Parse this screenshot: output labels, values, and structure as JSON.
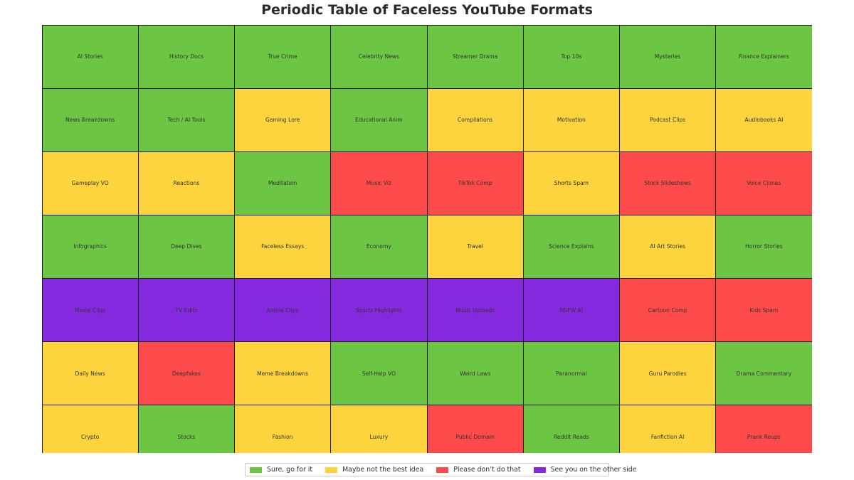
{
  "chart_data": {
    "type": "table",
    "title": "Periodic Table of Faceless YouTube Formats",
    "columns": 8,
    "categories": {
      "green": {
        "label": "Sure, go for it",
        "color": "#6cc644"
      },
      "yellow": {
        "label": "Maybe not the best idea",
        "color": "#fdd43d"
      },
      "red": {
        "label": "Please don’t do that",
        "color": "#fd4a4a"
      },
      "purple": {
        "label": "See you on the other side",
        "color": "#8429de"
      }
    },
    "legend_order": [
      "green",
      "yellow",
      "red",
      "purple"
    ],
    "legend_placement": "bottom-center",
    "cells": [
      {
        "label": "AI Stories",
        "category": "green"
      },
      {
        "label": "History Docs",
        "category": "green"
      },
      {
        "label": "True Crime",
        "category": "green"
      },
      {
        "label": "Celebrity News",
        "category": "green"
      },
      {
        "label": "Streamer Drama",
        "category": "green"
      },
      {
        "label": "Top 10s",
        "category": "green"
      },
      {
        "label": "Mysteries",
        "category": "green"
      },
      {
        "label": "Finance Explainers",
        "category": "green"
      },
      {
        "label": "News Breakdowns",
        "category": "green"
      },
      {
        "label": "Tech / AI Tools",
        "category": "green"
      },
      {
        "label": "Gaming Lore",
        "category": "yellow"
      },
      {
        "label": "Educational Anim",
        "category": "green"
      },
      {
        "label": "Compilations",
        "category": "yellow"
      },
      {
        "label": "Motivation",
        "category": "yellow"
      },
      {
        "label": "Podcast Clips",
        "category": "yellow"
      },
      {
        "label": "Audiobooks AI",
        "category": "yellow"
      },
      {
        "label": "Gameplay VO",
        "category": "yellow"
      },
      {
        "label": "Reactions",
        "category": "yellow"
      },
      {
        "label": "Meditation",
        "category": "green"
      },
      {
        "label": "Music Viz",
        "category": "red"
      },
      {
        "label": "TikTok Comp",
        "category": "red"
      },
      {
        "label": "Shorts Spam",
        "category": "yellow"
      },
      {
        "label": "Stock Slideshows",
        "category": "red"
      },
      {
        "label": "Voice Clones",
        "category": "red"
      },
      {
        "label": "Infographics",
        "category": "green"
      },
      {
        "label": "Deep Dives",
        "category": "green"
      },
      {
        "label": "Faceless Essays",
        "category": "yellow"
      },
      {
        "label": "Economy",
        "category": "green"
      },
      {
        "label": "Travel",
        "category": "yellow"
      },
      {
        "label": "Science Explains",
        "category": "green"
      },
      {
        "label": "AI Art Stories",
        "category": "yellow"
      },
      {
        "label": "Horror Stories",
        "category": "green"
      },
      {
        "label": "Movie Clips",
        "category": "purple"
      },
      {
        "label": "TV Edits",
        "category": "purple"
      },
      {
        "label": "Anime Clips",
        "category": "purple"
      },
      {
        "label": "Sports Highlights",
        "category": "purple"
      },
      {
        "label": "Music Uploads",
        "category": "purple"
      },
      {
        "label": "NSFW AI",
        "category": "purple"
      },
      {
        "label": "Cartoon Comp",
        "category": "red"
      },
      {
        "label": "Kids Spam",
        "category": "red"
      },
      {
        "label": "Daily News",
        "category": "yellow"
      },
      {
        "label": "Deepfakes",
        "category": "red"
      },
      {
        "label": "Meme Breakdowns",
        "category": "yellow"
      },
      {
        "label": "Self-Help VO",
        "category": "green"
      },
      {
        "label": "Weird Laws",
        "category": "green"
      },
      {
        "label": "Paranormal",
        "category": "green"
      },
      {
        "label": "Guru Parodies",
        "category": "yellow"
      },
      {
        "label": "Drama Commentary",
        "category": "green"
      },
      {
        "label": "Crypto",
        "category": "yellow"
      },
      {
        "label": "Stocks",
        "category": "green"
      },
      {
        "label": "Fashion",
        "category": "yellow"
      },
      {
        "label": "Luxury",
        "category": "yellow"
      },
      {
        "label": "Public Domain",
        "category": "red"
      },
      {
        "label": "Reddit Reads",
        "category": "green"
      },
      {
        "label": "Fanfiction AI",
        "category": "yellow"
      },
      {
        "label": "Prank Reups",
        "category": "red"
      }
    ]
  }
}
